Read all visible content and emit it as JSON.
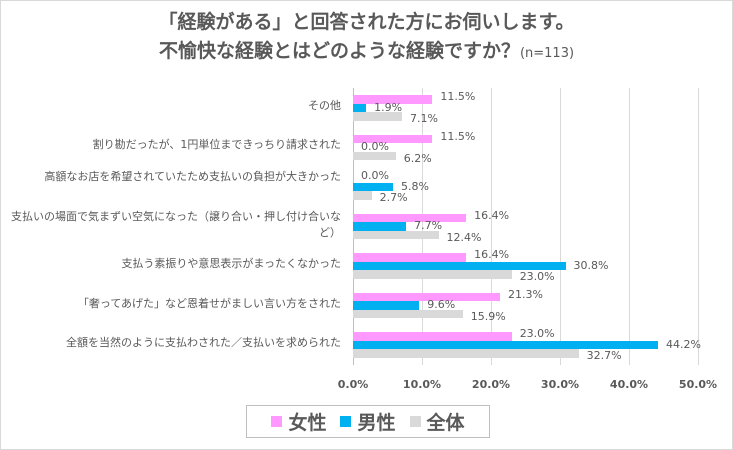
{
  "title": {
    "line1": "「経験がある」と回答された方にお伺いします。",
    "line2": "不愉快な経験とはどのような経験ですか？",
    "n": "(n=113)"
  },
  "chart_data": {
    "type": "bar",
    "orientation": "horizontal",
    "title": "「経験がある」と回答された方にお伺いします。不愉快な経験とはどのような経験ですか？(n=113)",
    "categories": [
      "その他",
      "割り勘だったが、1円単位まできっちり請求された",
      "高額なお店を希望されていたため支払いの負担が大きかった",
      "支払いの場面で気まずい空気になった（譲り合い・押し付け合いなど）",
      "支払う素振りや意思表示がまったくなかった",
      "「奢ってあげた」など恩着せがましい言い方をされた",
      "全額を当然のように支払わされた／支払いを求められた"
    ],
    "series": [
      {
        "name": "女性",
        "color": "#ff99ff",
        "values": [
          11.5,
          11.5,
          0.0,
          16.4,
          16.4,
          21.3,
          23.0
        ]
      },
      {
        "name": "男性",
        "color": "#00b0f0",
        "values": [
          1.9,
          0.0,
          5.8,
          7.7,
          30.8,
          9.6,
          44.2
        ]
      },
      {
        "name": "全体",
        "color": "#d9d9d9",
        "values": [
          7.1,
          6.2,
          2.7,
          12.4,
          23.0,
          15.9,
          32.7
        ]
      }
    ],
    "xlabel": "",
    "ylabel": "",
    "xlim": [
      0,
      50
    ],
    "xticks": [
      "0.0%",
      "10.0%",
      "20.0%",
      "30.0%",
      "40.0%",
      "50.0%"
    ],
    "grid": true,
    "legend_position": "bottom",
    "value_format": "percent_1dp"
  },
  "legend": [
    {
      "label": "女性",
      "color": "#ff99ff"
    },
    {
      "label": "男性",
      "color": "#00b0f0"
    },
    {
      "label": "全体",
      "color": "#d9d9d9"
    }
  ]
}
